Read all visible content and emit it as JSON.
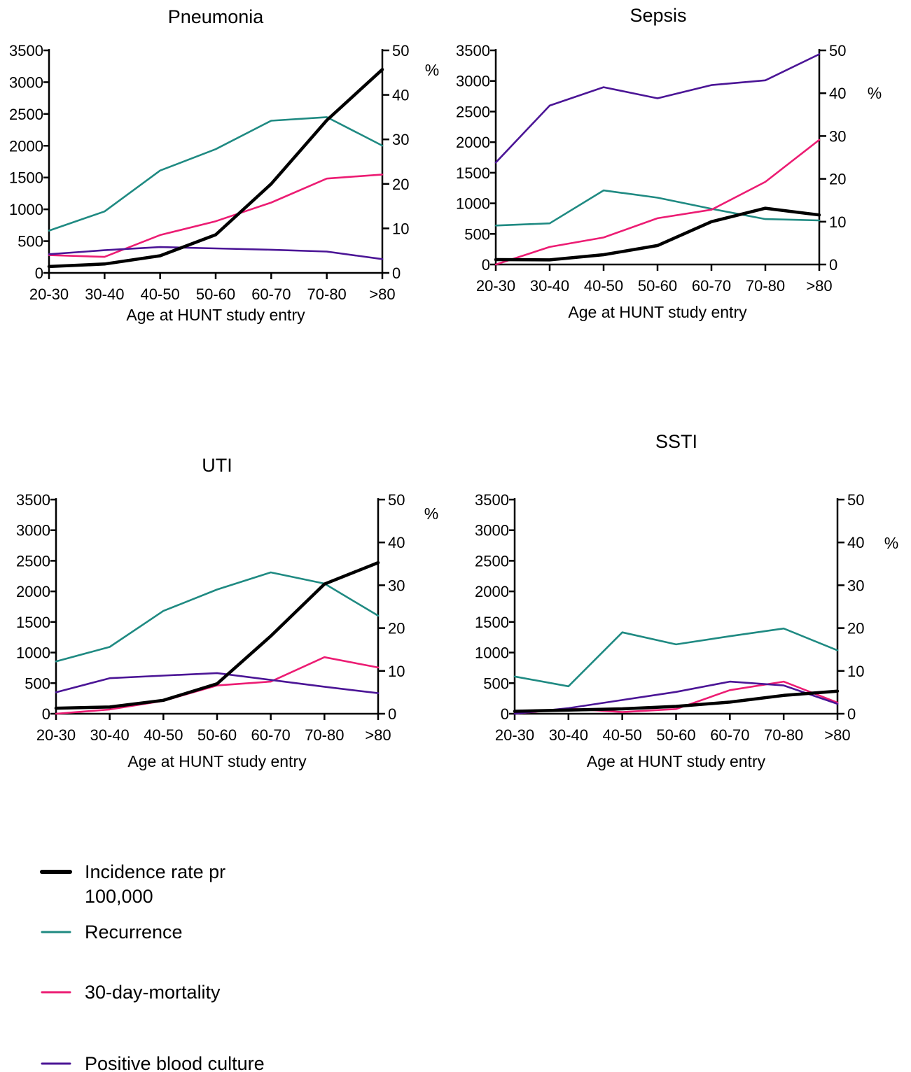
{
  "colors": {
    "incidence": "#000000",
    "recurrence": "#1f8a82",
    "mortality": "#ec1c73",
    "blood_culture": "#4b1596"
  },
  "legend": [
    {
      "key": "incidence",
      "label_line1": "Incidence rate pr",
      "label_line2": "100,000"
    },
    {
      "key": "recurrence",
      "label_line1": "Recurrence",
      "label_line2": ""
    },
    {
      "key": "mortality",
      "label_line1": "30-day-mortality",
      "label_line2": ""
    },
    {
      "key": "blood_culture",
      "label_line1": "Positive blood culture",
      "label_line2": ""
    }
  ],
  "chart_data": [
    {
      "type": "line",
      "title": "Pneumonia",
      "xlabel": "Age at HUNT study entry",
      "right_unit": "%",
      "categories": [
        "20-30",
        "30-40",
        "40-50",
        "50-60",
        "60-70",
        "70-80",
        ">80"
      ],
      "y_left": {
        "ylim": [
          0,
          3500
        ],
        "ticks": [
          0,
          500,
          1000,
          1500,
          2000,
          2500,
          3000,
          3500
        ]
      },
      "y_right": {
        "ylim": [
          0,
          50
        ],
        "ticks": [
          0,
          10,
          20,
          30,
          40,
          50
        ]
      },
      "series": [
        {
          "key": "incidence",
          "name": "Incidence rate pr 100,000",
          "axis": "left",
          "values": [
            100,
            140,
            270,
            600,
            1400,
            2400,
            3200
          ]
        },
        {
          "key": "recurrence",
          "name": "Recurrence",
          "axis": "right",
          "values": [
            9.5,
            13.8,
            23,
            27.8,
            34.2,
            35,
            28.6
          ]
        },
        {
          "key": "mortality",
          "name": "30-day-mortality",
          "axis": "right",
          "values": [
            4,
            3.6,
            8.5,
            11.6,
            15.8,
            21.2,
            22.1
          ]
        },
        {
          "key": "blood_culture",
          "name": "Positive blood culture",
          "axis": "right",
          "values": [
            4.2,
            5.1,
            5.8,
            5.5,
            5.2,
            4.8,
            3.1
          ]
        }
      ]
    },
    {
      "type": "line",
      "title": "Sepsis",
      "xlabel": "Age at HUNT study entry",
      "right_unit": "%",
      "categories": [
        "20-30",
        "30-40",
        "40-50",
        "50-60",
        "60-70",
        "70-80",
        ">80"
      ],
      "y_left": {
        "ylim": [
          0,
          3500
        ],
        "ticks": [
          0,
          500,
          1000,
          1500,
          2000,
          2500,
          3000,
          3500
        ]
      },
      "y_right": {
        "ylim": [
          0,
          50
        ],
        "ticks": [
          0,
          10,
          20,
          30,
          40,
          50
        ]
      },
      "series": [
        {
          "key": "incidence",
          "name": "Incidence rate pr 100,000",
          "axis": "left",
          "values": [
            80,
            75,
            160,
            310,
            700,
            920,
            810
          ]
        },
        {
          "key": "recurrence",
          "name": "Recurrence",
          "axis": "right",
          "values": [
            9.1,
            9.6,
            17.3,
            15.6,
            13,
            10.6,
            10.3
          ]
        },
        {
          "key": "mortality",
          "name": "30-day-mortality",
          "axis": "right",
          "values": [
            0,
            4.1,
            6.3,
            10.8,
            12.8,
            19.3,
            29.1
          ]
        },
        {
          "key": "blood_culture",
          "name": "Positive blood culture",
          "axis": "right",
          "values": [
            23.8,
            37.1,
            41.4,
            38.8,
            41.9,
            43,
            49.1
          ]
        }
      ]
    },
    {
      "type": "line",
      "title": "UTI",
      "xlabel": "Age at HUNT study entry",
      "right_unit": "%",
      "categories": [
        "20-30",
        "30-40",
        "40-50",
        "50-60",
        "60-70",
        "70-80",
        ">80"
      ],
      "y_left": {
        "ylim": [
          0,
          3500
        ],
        "ticks": [
          0,
          500,
          1000,
          1500,
          2000,
          2500,
          3000,
          3500
        ]
      },
      "y_right": {
        "ylim": [
          0,
          50
        ],
        "ticks": [
          0,
          10,
          20,
          30,
          40,
          50
        ]
      },
      "series": [
        {
          "key": "incidence",
          "name": "Incidence rate pr 100,000",
          "axis": "left",
          "values": [
            90,
            110,
            220,
            490,
            1270,
            2120,
            2470
          ]
        },
        {
          "key": "recurrence",
          "name": "Recurrence",
          "axis": "right",
          "values": [
            12.2,
            15.6,
            24,
            29,
            33,
            30.4,
            22.9
          ]
        },
        {
          "key": "mortality",
          "name": "30-day-mortality",
          "axis": "right",
          "values": [
            0,
            1,
            3,
            6.6,
            7.5,
            13.2,
            10.8
          ]
        },
        {
          "key": "blood_culture",
          "name": "Positive blood culture",
          "axis": "right",
          "values": [
            5,
            8.3,
            8.9,
            9.5,
            7.9,
            6.3,
            4.8
          ]
        }
      ]
    },
    {
      "type": "line",
      "title": "SSTI",
      "xlabel": "Age at HUNT study entry",
      "right_unit": "%",
      "categories": [
        "20-30",
        "30-40",
        "40-50",
        "50-60",
        "60-70",
        "70-80",
        ">80"
      ],
      "y_left": {
        "ylim": [
          0,
          3500
        ],
        "ticks": [
          0,
          500,
          1000,
          1500,
          2000,
          2500,
          3000,
          3500
        ]
      },
      "y_right": {
        "ylim": [
          0,
          50
        ],
        "ticks": [
          0,
          10,
          20,
          30,
          40,
          50
        ]
      },
      "series": [
        {
          "key": "incidence",
          "name": "Incidence rate pr 100,000",
          "axis": "left",
          "values": [
            40,
            60,
            80,
            120,
            190,
            300,
            370
          ]
        },
        {
          "key": "recurrence",
          "name": "Recurrence",
          "axis": "right",
          "values": [
            8.7,
            6.4,
            19,
            16.2,
            18.1,
            19.9,
            14.8
          ]
        },
        {
          "key": "mortality",
          "name": "30-day-mortality",
          "axis": "right",
          "values": [
            0,
            1.2,
            0.4,
            1.1,
            5.5,
            7.5,
            2.6
          ]
        },
        {
          "key": "blood_culture",
          "name": "Positive blood culture",
          "axis": "right",
          "values": [
            0,
            1.3,
            3.2,
            5.1,
            7.5,
            6.6,
            2.3
          ]
        }
      ]
    }
  ]
}
